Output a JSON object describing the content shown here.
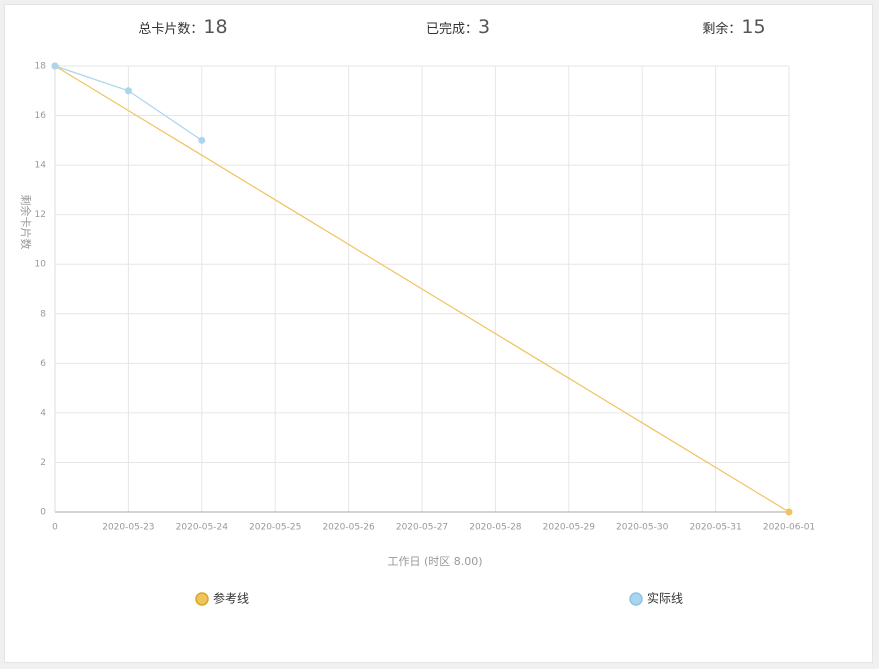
{
  "summary": [
    {
      "label": "总卡片数：",
      "value": 18
    },
    {
      "label": "已完成：",
      "value": 3
    },
    {
      "label": "剩余：",
      "value": 15
    }
  ],
  "chart_data": {
    "type": "line",
    "x_label": "工作日 (时区 8.00)",
    "y_label": "剩余卡片数",
    "categories": [
      "0",
      "2020-05-23",
      "2020-05-24",
      "2020-05-25",
      "2020-05-26",
      "2020-05-27",
      "2020-05-28",
      "2020-05-29",
      "2020-05-30",
      "2020-05-31",
      "2020-06-01"
    ],
    "series": [
      {
        "name": "参考线",
        "color": "#f0c35e",
        "values": [
          18,
          16.2,
          14.4,
          12.6,
          10.8,
          9,
          7.2,
          5.4,
          3.6,
          1.8,
          0
        ]
      },
      {
        "name": "实际线",
        "color": "#a9d5ef",
        "values": [
          18,
          17,
          15,
          null,
          null,
          null,
          null,
          null,
          null,
          null,
          null
        ]
      }
    ],
    "ylim": [
      0,
      18
    ],
    "yticks": [
      0,
      2,
      4,
      6,
      8,
      10,
      12,
      14,
      16,
      18
    ],
    "grid": true,
    "legend": "bottom"
  }
}
